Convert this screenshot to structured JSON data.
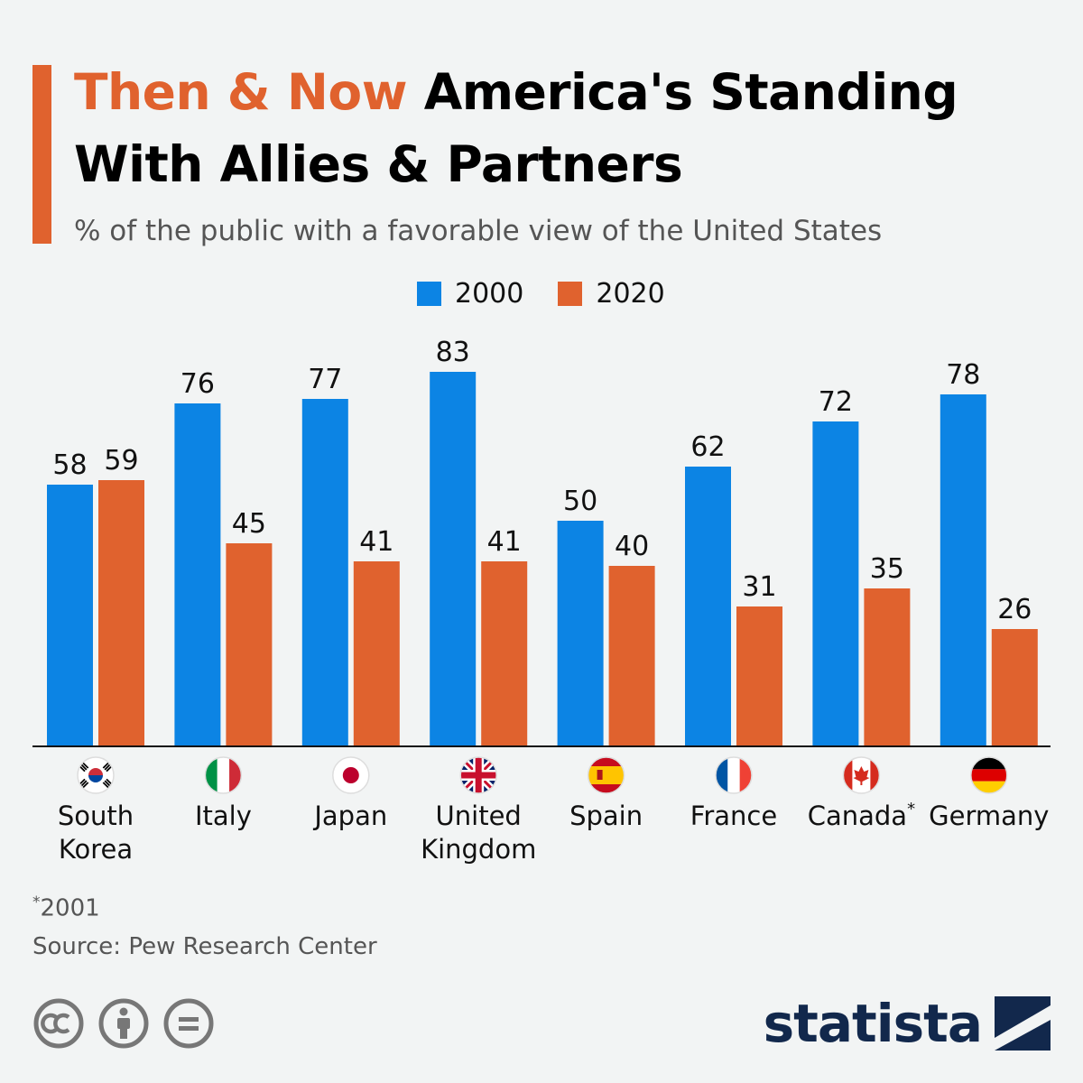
{
  "header": {
    "title_highlight": "Then & Now",
    "title_rest": "America's Standing With Allies & Partners",
    "subtitle": "% of the public with a favorable view of the United States"
  },
  "colors": {
    "series_2000": "#0c84e4",
    "series_2020": "#e0622e",
    "accent": "#e0622e",
    "brand": "#12284c"
  },
  "chart_data": {
    "type": "bar",
    "categories": [
      "South Korea",
      "Italy",
      "Japan",
      "United Kingdom",
      "Spain",
      "France",
      "Canada*",
      "Germany"
    ],
    "category_lines": [
      [
        "South",
        "Korea"
      ],
      [
        "Italy"
      ],
      [
        "Japan"
      ],
      [
        "United",
        "Kingdom"
      ],
      [
        "Spain"
      ],
      [
        "France"
      ],
      [
        "Canada",
        "*"
      ],
      [
        "Germany"
      ]
    ],
    "flags": [
      "south-korea-flag-icon",
      "italy-flag-icon",
      "japan-flag-icon",
      "uk-flag-icon",
      "spain-flag-icon",
      "france-flag-icon",
      "canada-flag-icon",
      "germany-flag-icon"
    ],
    "series": [
      {
        "name": "2000",
        "values": [
          58,
          76,
          77,
          83,
          50,
          62,
          72,
          78
        ]
      },
      {
        "name": "2020",
        "values": [
          59,
          45,
          41,
          41,
          40,
          31,
          35,
          26
        ]
      }
    ],
    "legend_position": "top-center",
    "grid": false,
    "ylim": [
      0,
      100
    ]
  },
  "footer": {
    "footnote_mark": "*",
    "footnote": "2001",
    "source": "Source: Pew Research Center",
    "brand": "statista",
    "license_icons": [
      "creative-commons-icon",
      "attribution-icon",
      "no-derivatives-icon"
    ]
  }
}
